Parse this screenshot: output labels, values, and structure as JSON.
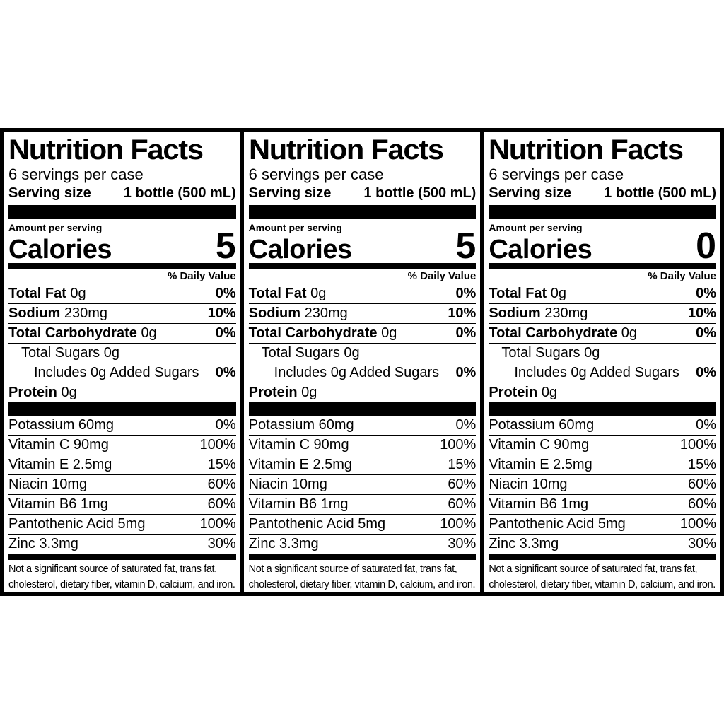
{
  "panels": [
    {
      "title": "Nutrition Facts",
      "servings_per_container": "6 servings per case",
      "serving_size_label": "Serving size",
      "serving_size_value": "1 bottle (500 mL)",
      "amount_per_serving": "Amount per serving",
      "calories_label": "Calories",
      "calories_value": "5",
      "dv_header": "% Daily Value",
      "nutrients": [
        {
          "name": "Total Fat",
          "amount": "0g",
          "dv": "0%"
        },
        {
          "name": "Sodium",
          "amount": "230mg",
          "dv": "10%"
        },
        {
          "name": "Total Carbohydrate",
          "amount": "0g",
          "dv": "0%"
        },
        {
          "name": "Total Sugars 0g",
          "dv": ""
        },
        {
          "name": "Includes 0g Added Sugars",
          "dv": "0%"
        },
        {
          "name": "Protein",
          "amount": "0g"
        }
      ],
      "vitamins": [
        {
          "name": "Potassium 60mg",
          "dv": "0%"
        },
        {
          "name": "Vitamin C 90mg",
          "dv": "100%"
        },
        {
          "name": "Vitamin E 2.5mg",
          "dv": "15%"
        },
        {
          "name": "Niacin 10mg",
          "dv": "60%"
        },
        {
          "name": "Vitamin B6 1mg",
          "dv": "60%"
        },
        {
          "name": "Pantothenic Acid 5mg",
          "dv": "100%"
        },
        {
          "name": "Zinc 3.3mg",
          "dv": "30%"
        }
      ],
      "footnote": "Not a significant source of saturated fat, trans fat, cholesterol, dietary fiber, vitamin D, calcium, and iron."
    },
    {
      "title": "Nutrition Facts",
      "servings_per_container": "6 servings per case",
      "serving_size_label": "Serving size",
      "serving_size_value": "1 bottle (500 mL)",
      "amount_per_serving": "Amount per serving",
      "calories_label": "Calories",
      "calories_value": "5",
      "dv_header": "% Daily Value",
      "nutrients": [
        {
          "name": "Total Fat",
          "amount": "0g",
          "dv": "0%"
        },
        {
          "name": "Sodium",
          "amount": "230mg",
          "dv": "10%"
        },
        {
          "name": "Total Carbohydrate",
          "amount": "0g",
          "dv": "0%"
        },
        {
          "name": "Total Sugars 0g",
          "dv": ""
        },
        {
          "name": "Includes 0g Added Sugars",
          "dv": "0%"
        },
        {
          "name": "Protein",
          "amount": "0g"
        }
      ],
      "vitamins": [
        {
          "name": "Potassium 60mg",
          "dv": "0%"
        },
        {
          "name": "Vitamin C 90mg",
          "dv": "100%"
        },
        {
          "name": "Vitamin E 2.5mg",
          "dv": "15%"
        },
        {
          "name": "Niacin 10mg",
          "dv": "60%"
        },
        {
          "name": "Vitamin B6 1mg",
          "dv": "60%"
        },
        {
          "name": "Pantothenic Acid 5mg",
          "dv": "100%"
        },
        {
          "name": "Zinc 3.3mg",
          "dv": "30%"
        }
      ],
      "footnote": "Not a significant source of saturated fat, trans fat, cholesterol, dietary fiber, vitamin D, calcium, and iron."
    },
    {
      "title": "Nutrition Facts",
      "servings_per_container": "6 servings per case",
      "serving_size_label": "Serving size",
      "serving_size_value": "1 bottle (500 mL)",
      "amount_per_serving": "Amount per serving",
      "calories_label": "Calories",
      "calories_value": "0",
      "dv_header": "% Daily Value",
      "nutrients": [
        {
          "name": "Total Fat",
          "amount": "0g",
          "dv": "0%"
        },
        {
          "name": "Sodium",
          "amount": "230mg",
          "dv": "10%"
        },
        {
          "name": "Total Carbohydrate",
          "amount": "0g",
          "dv": "0%"
        },
        {
          "name": "Total Sugars 0g",
          "dv": ""
        },
        {
          "name": "Includes 0g Added Sugars",
          "dv": "0%"
        },
        {
          "name": "Protein",
          "amount": "0g"
        }
      ],
      "vitamins": [
        {
          "name": "Potassium 60mg",
          "dv": "0%"
        },
        {
          "name": "Vitamin C 90mg",
          "dv": "100%"
        },
        {
          "name": "Vitamin E 2.5mg",
          "dv": "15%"
        },
        {
          "name": "Niacin 10mg",
          "dv": "60%"
        },
        {
          "name": "Vitamin B6 1mg",
          "dv": "60%"
        },
        {
          "name": "Pantothenic Acid 5mg",
          "dv": "100%"
        },
        {
          "name": "Zinc 3.3mg",
          "dv": "30%"
        }
      ],
      "footnote": "Not a significant source of saturated fat, trans fat, cholesterol, dietary fiber, vitamin D, calcium, and iron."
    }
  ]
}
